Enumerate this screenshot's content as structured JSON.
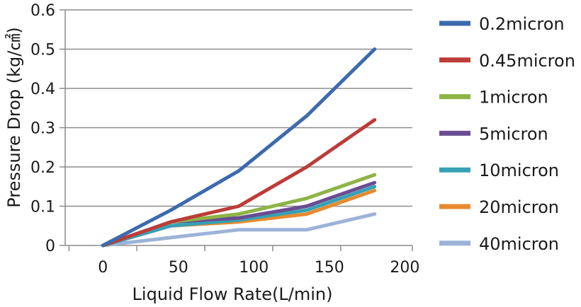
{
  "chart_data": {
    "type": "line",
    "title": "",
    "xlabel": "Liquid Flow Rate(L/min)",
    "ylabel": "Pressure Drop (kg/㎠)",
    "x": [
      0,
      45,
      90,
      135,
      180
    ],
    "xticks": [
      "0",
      "50",
      "100",
      "150",
      "200"
    ],
    "xtick_values": [
      0,
      50,
      100,
      150,
      200
    ],
    "yticks": [
      "0",
      "0.1",
      "0.2",
      "0.3",
      "0.4",
      "0.5",
      "0.6"
    ],
    "ytick_values": [
      0,
      0.1,
      0.2,
      0.3,
      0.4,
      0.5,
      0.6
    ],
    "xlim": [
      -25,
      205
    ],
    "ylim": [
      0,
      0.6
    ],
    "grid": "horizontal",
    "legend": "right",
    "series": [
      {
        "name": "0.2micron",
        "color": "#3D6AAE",
        "values": [
          0,
          0.09,
          0.19,
          0.33,
          0.5
        ]
      },
      {
        "name": "0.45micron",
        "color": "#BC3C38",
        "values": [
          0,
          0.06,
          0.1,
          0.2,
          0.32
        ]
      },
      {
        "name": "1micron",
        "color": "#8DB446",
        "values": [
          0,
          0.06,
          0.08,
          0.12,
          0.18
        ]
      },
      {
        "name": "5micron",
        "color": "#6A4D91",
        "values": [
          0,
          0.06,
          0.07,
          0.1,
          0.16
        ]
      },
      {
        "name": "10micron",
        "color": "#36A1B5",
        "values": [
          0,
          0.05,
          0.065,
          0.09,
          0.15
        ]
      },
      {
        "name": "20micron",
        "color": "#E88A2E",
        "values": [
          0,
          0.05,
          0.06,
          0.08,
          0.14
        ]
      },
      {
        "name": "40micron",
        "color": "#9CB3D8",
        "values": [
          0,
          0.02,
          0.04,
          0.04,
          0.08
        ]
      }
    ]
  }
}
